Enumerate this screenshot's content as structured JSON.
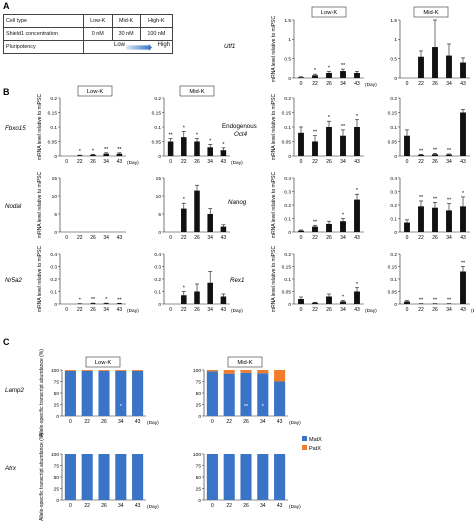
{
  "panels": {
    "A": "A",
    "B": "B",
    "C": "C"
  },
  "table": {
    "rows": [
      [
        "Cell type",
        "Low-K",
        "Mid-K",
        "High-K"
      ],
      [
        "Shield1 concentration",
        "0 nM",
        "30 nM",
        "100 nM"
      ]
    ],
    "pluripotency_label": "Pluripotency",
    "low": "Low",
    "high": "High"
  },
  "colors": {
    "bar": "#111111",
    "mat_x": "#3a74c7",
    "pat_x": "#ef7d2c",
    "arrow": "#2e6fbf"
  },
  "chart_data": [
    {
      "id": "utf1-low",
      "type": "bar",
      "gene": "Utf1",
      "group": "Low-K",
      "ylabel": "mRNA level relative to miPSC",
      "xlabel": "(Day)",
      "categories": [
        "0",
        "22",
        "26",
        "34",
        "43"
      ],
      "values": [
        0.02,
        0.07,
        0.13,
        0.18,
        0.13
      ],
      "errors": [
        0.01,
        0.03,
        0.04,
        0.05,
        0.04
      ],
      "sig": [
        "",
        "*",
        "*",
        "**",
        ""
      ],
      "ylim": [
        0,
        1.5
      ],
      "yticks": [
        0,
        0.5,
        1,
        1.5
      ]
    },
    {
      "id": "utf1-mid",
      "type": "bar",
      "gene": "Utf1",
      "group": "Mid-K",
      "ylabel": "",
      "xlabel": "",
      "categories": [
        "0",
        "22",
        "26",
        "34",
        "43"
      ],
      "values": [
        0,
        0.55,
        0.8,
        0.58,
        0.4
      ],
      "errors": [
        0,
        0.15,
        0.7,
        0.3,
        0.12
      ],
      "sig": [
        "",
        "",
        "",
        "",
        ""
      ],
      "ylim": [
        0,
        1.5
      ],
      "yticks": [
        0,
        0.5,
        1,
        1.5
      ]
    },
    {
      "id": "fbxo15-low",
      "type": "bar",
      "gene": "Fbxo15",
      "group": "Low-K",
      "ylabel": "mRNA level relative to miPSC",
      "xlabel": "(Day)",
      "categories": [
        "0",
        "22",
        "26",
        "34",
        "43"
      ],
      "values": [
        0,
        0.002,
        0.004,
        0.008,
        0.008
      ],
      "errors": [
        0,
        0.001,
        0.002,
        0.003,
        0.003
      ],
      "sig": [
        "",
        "*",
        "*",
        "**",
        "**"
      ],
      "ylim": [
        0,
        0.2
      ],
      "yticks": [
        0,
        0.05,
        0.1,
        0.15,
        0.2
      ]
    },
    {
      "id": "fbxo15-mid",
      "type": "bar",
      "gene": "Fbxo15",
      "group": "Mid-K",
      "ylabel": "",
      "xlabel": "(Day)",
      "categories": [
        "0",
        "22",
        "26",
        "34",
        "43"
      ],
      "values": [
        0.05,
        0.065,
        0.05,
        0.03,
        0.02
      ],
      "errors": [
        0.01,
        0.02,
        0.01,
        0.01,
        0.008
      ],
      "sig": [
        "**",
        "*",
        "*",
        "*",
        "*"
      ],
      "ylim": [
        0,
        0.2
      ],
      "yticks": [
        0,
        0.05,
        0.1,
        0.15,
        0.2
      ]
    },
    {
      "id": "oct4-low",
      "type": "bar",
      "gene": "Endogenous Oct4",
      "group": "Low-K",
      "ylabel": "mRNA level relative to miPSC",
      "xlabel": "",
      "categories": [
        "0",
        "22",
        "26",
        "34",
        "43"
      ],
      "values": [
        0.08,
        0.05,
        0.1,
        0.07,
        0.1
      ],
      "errors": [
        0.02,
        0.02,
        0.02,
        0.02,
        0.025
      ],
      "sig": [
        "",
        "**",
        "*",
        "**",
        "*"
      ],
      "ylim": [
        0,
        0.2
      ],
      "yticks": [
        0,
        0.05,
        0.1,
        0.15,
        0.2
      ]
    },
    {
      "id": "oct4-mid",
      "type": "bar",
      "gene": "Endogenous Oct4",
      "group": "Mid-K",
      "ylabel": "",
      "xlabel": "",
      "categories": [
        "0",
        "22",
        "26",
        "34",
        "43"
      ],
      "values": [
        0.07,
        0.004,
        0.006,
        0.005,
        0.15
      ],
      "errors": [
        0.02,
        0.002,
        0.003,
        0.002,
        0.01
      ],
      "sig": [
        "",
        "**",
        "**",
        "**",
        ""
      ],
      "ylim": [
        0,
        0.2
      ],
      "yticks": [
        0,
        0.05,
        0.1,
        0.15,
        0.2
      ]
    },
    {
      "id": "nodal-low",
      "type": "bar",
      "gene": "Nodal",
      "group": "Low-K",
      "ylabel": "mRNA level relative to miPSC",
      "xlabel": "",
      "categories": [
        "0",
        "22",
        "26",
        "34",
        "43"
      ],
      "values": [
        0,
        0,
        0,
        0,
        0
      ],
      "errors": [
        0,
        0,
        0,
        0,
        0
      ],
      "sig": [
        "",
        "",
        "",
        "",
        ""
      ],
      "ylim": [
        0,
        15
      ],
      "yticks": [
        0,
        5,
        10,
        15
      ]
    },
    {
      "id": "nodal-mid",
      "type": "bar",
      "gene": "Nodal",
      "group": "Mid-K",
      "ylabel": "",
      "xlabel": "",
      "categories": [
        "0",
        "22",
        "26",
        "34",
        "43"
      ],
      "values": [
        0,
        6.5,
        11.5,
        5,
        1.5
      ],
      "errors": [
        0,
        1.5,
        1.5,
        1.5,
        0.5
      ],
      "sig": [
        "",
        "*",
        "",
        "",
        ""
      ],
      "ylim": [
        0,
        15
      ],
      "yticks": [
        0,
        5,
        10,
        15
      ]
    },
    {
      "id": "nanog-low",
      "type": "bar",
      "gene": "Nanog",
      "group": "Low-K",
      "ylabel": "mRNA level relative to miPSC",
      "xlabel": "",
      "categories": [
        "0",
        "22",
        "26",
        "34",
        "43"
      ],
      "values": [
        0.01,
        0.04,
        0.06,
        0.08,
        0.24
      ],
      "errors": [
        0.005,
        0.01,
        0.02,
        0.02,
        0.04
      ],
      "sig": [
        "",
        "**",
        "",
        "*",
        "*"
      ],
      "ylim": [
        0,
        0.4
      ],
      "yticks": [
        0,
        0.1,
        0.2,
        0.3,
        0.4
      ]
    },
    {
      "id": "nanog-mid",
      "type": "bar",
      "gene": "Nanog",
      "group": "Mid-K",
      "ylabel": "",
      "xlabel": "",
      "categories": [
        "0",
        "22",
        "26",
        "34",
        "43"
      ],
      "values": [
        0.07,
        0.19,
        0.18,
        0.16,
        0.19
      ],
      "errors": [
        0.02,
        0.04,
        0.04,
        0.05,
        0.07
      ],
      "sig": [
        "",
        "**",
        "**",
        "**",
        "*"
      ],
      "ylim": [
        0,
        0.4
      ],
      "yticks": [
        0,
        0.1,
        0.2,
        0.3,
        0.4
      ]
    },
    {
      "id": "nr5a2-low",
      "type": "bar",
      "gene": "Nr5a2",
      "group": "Low-K",
      "ylabel": "mRNA level relative to miPSC",
      "xlabel": "(Day)",
      "categories": [
        "0",
        "22",
        "26",
        "34",
        "43"
      ],
      "values": [
        0,
        0.002,
        0.005,
        0.005,
        0.004
      ],
      "errors": [
        0,
        0.001,
        0.002,
        0.002,
        0.002
      ],
      "sig": [
        "",
        "*",
        "**",
        "*",
        "**"
      ],
      "ylim": [
        0,
        0.4
      ],
      "yticks": [
        0,
        0.1,
        0.2,
        0.3,
        0.4
      ]
    },
    {
      "id": "nr5a2-mid",
      "type": "bar",
      "gene": "Nr5a2",
      "group": "Mid-K",
      "ylabel": "",
      "xlabel": "(Day)",
      "categories": [
        "0",
        "22",
        "26",
        "34",
        "43"
      ],
      "values": [
        0,
        0.07,
        0.1,
        0.17,
        0.06
      ],
      "errors": [
        0,
        0.03,
        0.06,
        0.09,
        0.02
      ],
      "sig": [
        "",
        "*",
        "",
        "",
        ""
      ],
      "ylim": [
        0,
        0.4
      ],
      "yticks": [
        0,
        0.1,
        0.2,
        0.3,
        0.4
      ]
    },
    {
      "id": "rex1-low",
      "type": "bar",
      "gene": "Rex1",
      "group": "Low-K",
      "ylabel": "mRNA level relative to miPSC",
      "xlabel": "(Day)",
      "categories": [
        "0",
        "22",
        "26",
        "34",
        "43"
      ],
      "values": [
        0.02,
        0.005,
        0.03,
        0.01,
        0.05
      ],
      "errors": [
        0.008,
        0.002,
        0.01,
        0.004,
        0.015
      ],
      "sig": [
        "",
        "",
        "",
        "*",
        "*"
      ],
      "ylim": [
        0,
        0.2
      ],
      "yticks": [
        0,
        0.05,
        0.1,
        0.15,
        0.2
      ]
    },
    {
      "id": "rex1-mid",
      "type": "bar",
      "gene": "Rex1",
      "group": "Mid-K",
      "ylabel": "",
      "xlabel": "(Day)",
      "categories": [
        "0",
        "22",
        "26",
        "34",
        "43"
      ],
      "values": [
        0.01,
        0.001,
        0.001,
        0.001,
        0.13
      ],
      "errors": [
        0.004,
        0.0005,
        0.0005,
        0.0005,
        0.02
      ],
      "sig": [
        "",
        "**",
        "**",
        "**",
        "**"
      ],
      "ylim": [
        0,
        0.2
      ],
      "yticks": [
        0,
        0.05,
        0.1,
        0.15,
        0.2
      ]
    },
    {
      "id": "lamp2-low",
      "type": "bar",
      "stacked": true,
      "gene": "Lamp2",
      "group": "Low-K",
      "ylabel": "Allele-specific transcript abundance (%)",
      "xlabel": "(Day)",
      "categories": [
        "0",
        "22",
        "26",
        "34",
        "43"
      ],
      "series": [
        {
          "name": "MatX",
          "values": [
            98,
            98,
            98,
            98,
            98
          ]
        },
        {
          "name": "PatX",
          "values": [
            2,
            2,
            2,
            2,
            2
          ]
        }
      ],
      "sig": [
        "",
        "",
        "",
        "*",
        ""
      ],
      "ylim": [
        0,
        100
      ],
      "yticks": [
        0,
        25,
        50,
        75,
        100
      ]
    },
    {
      "id": "lamp2-mid",
      "type": "bar",
      "stacked": true,
      "gene": "Lamp2",
      "group": "Mid-K",
      "ylabel": "",
      "xlabel": "(Day)",
      "categories": [
        "0",
        "22",
        "26",
        "34",
        "43"
      ],
      "series": [
        {
          "name": "MatX",
          "values": [
            97,
            92,
            94,
            93,
            75
          ]
        },
        {
          "name": "PatX",
          "values": [
            3,
            8,
            6,
            7,
            25
          ]
        }
      ],
      "sig": [
        "",
        "",
        "**",
        "*",
        ""
      ],
      "ylim": [
        0,
        100
      ],
      "yticks": [
        0,
        25,
        50,
        75,
        100
      ]
    },
    {
      "id": "atrx-low",
      "type": "bar",
      "stacked": true,
      "gene": "Atrx",
      "group": "Low-K",
      "ylabel": "Allele-specific transcript abundance (%)",
      "xlabel": "(Day)",
      "categories": [
        "0",
        "22",
        "26",
        "34",
        "43"
      ],
      "series": [
        {
          "name": "MatX",
          "values": [
            100,
            100,
            100,
            100,
            100
          ]
        },
        {
          "name": "PatX",
          "values": [
            0,
            0,
            0,
            0,
            0
          ]
        }
      ],
      "sig": [
        "",
        "",
        "",
        "",
        ""
      ],
      "ylim": [
        0,
        100
      ],
      "yticks": [
        0,
        25,
        50,
        75,
        100
      ]
    },
    {
      "id": "atrx-mid",
      "type": "bar",
      "stacked": true,
      "gene": "Atrx",
      "group": "Mid-K",
      "ylabel": "",
      "xlabel": "(Day)",
      "categories": [
        "0",
        "22",
        "26",
        "34",
        "43"
      ],
      "series": [
        {
          "name": "MatX",
          "values": [
            100,
            100,
            100,
            100,
            100
          ]
        },
        {
          "name": "PatX",
          "values": [
            0,
            0,
            0,
            0,
            0
          ]
        }
      ],
      "sig": [
        "",
        "",
        "",
        "",
        ""
      ],
      "ylim": [
        0,
        100
      ],
      "yticks": [
        0,
        25,
        50,
        75,
        100
      ]
    }
  ],
  "headers": {
    "low": "Low-K",
    "mid": "Mid-K"
  },
  "legend": {
    "mat": "MatX",
    "pat": "PatX"
  }
}
